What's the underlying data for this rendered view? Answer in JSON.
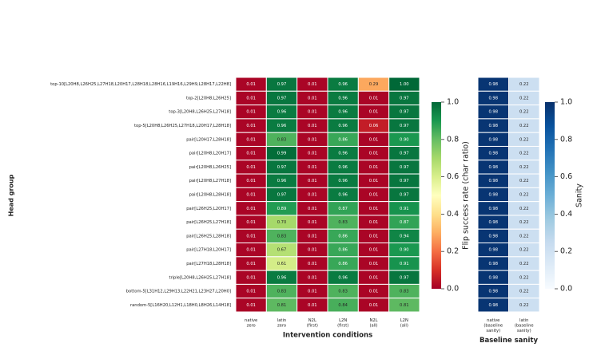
{
  "chart_data": [
    {
      "type": "heatmap",
      "ylabel": "Head group",
      "xlabel": "Intervention conditions",
      "rows": [
        "top-10[L20H8,L26H25,L27H18,L20H17,L28H18,L28H16,L19H16,L29H9,L28H17,L22H8]",
        "top-2[L20H8,L26H25]",
        "top-3[L20H8,L26H25,L27H18]",
        "top-5[L20H8,L26H25,L27H18,L20H17,L28H18]",
        "pair[L20H17,L28H18]",
        "pair[L20H8,L20H17]",
        "pair[L20H8,L26H25]",
        "pair[L20H8,L27H18]",
        "pair[L20H8,L28H18]",
        "pair[L26H25,L20H17]",
        "pair[L26H25,L27H18]",
        "pair[L26H25,L28H18]",
        "pair[L27H18,L20H17]",
        "pair[L27H18,L28H18]",
        "triple[L20H8,L26H25,L27H18]",
        "bottom-5[L31H12,L29H13,L22H21,L23H27,L20H0]",
        "random-5[L16H20,L12H1,L18H0,L8H26,L14H18]"
      ],
      "columns": [
        "native\nzero",
        "latin\nzero",
        "N2L\n(first)",
        "L2N\n(first)",
        "N2L\n(all)",
        "L2N\n(all)"
      ],
      "values": [
        [
          0.01,
          0.97,
          0.01,
          0.96,
          0.29,
          1
        ],
        [
          0.01,
          0.97,
          0.01,
          0.96,
          0.01,
          0.97
        ],
        [
          0.01,
          0.96,
          0.01,
          0.96,
          0.01,
          0.97
        ],
        [
          0.01,
          0.96,
          0.01,
          0.96,
          0.06,
          0.97
        ],
        [
          0.01,
          0.83,
          0.01,
          0.86,
          0.01,
          0.9
        ],
        [
          0.01,
          0.99,
          0.01,
          0.96,
          0.01,
          0.97
        ],
        [
          0.01,
          0.97,
          0.01,
          0.96,
          0.01,
          0.97
        ],
        [
          0.01,
          0.96,
          0.01,
          0.96,
          0.01,
          0.97
        ],
        [
          0.01,
          0.97,
          0.01,
          0.96,
          0.01,
          0.97
        ],
        [
          0.01,
          0.89,
          0.01,
          0.87,
          0.01,
          0.91
        ],
        [
          0.01,
          0.7,
          0.01,
          0.83,
          0.01,
          0.87
        ],
        [
          0.01,
          0.83,
          0.01,
          0.86,
          0.01,
          0.94
        ],
        [
          0.01,
          0.67,
          0.01,
          0.86,
          0.01,
          0.9
        ],
        [
          0.01,
          0.61,
          0.01,
          0.86,
          0.01,
          0.91
        ],
        [
          0.01,
          0.96,
          0.01,
          0.96,
          0.01,
          0.97
        ],
        [
          0.01,
          0.83,
          0.01,
          0.83,
          0.01,
          0.83
        ],
        [
          0.01,
          0.81,
          0.01,
          0.84,
          0.01,
          0.81
        ]
      ],
      "value_labels": [
        [
          "0.01",
          "0.97",
          "0.01",
          "0.96",
          "0.29",
          "1.00"
        ],
        [
          "0.01",
          "0.97",
          "0.01",
          "0.96",
          "0.01",
          "0.97"
        ],
        [
          "0.01",
          "0.96",
          "0.01",
          "0.96",
          "0.01",
          "0.97"
        ],
        [
          "0.01",
          "0.96",
          "0.01",
          "0.96",
          "0.06",
          "0.97"
        ],
        [
          "0.01",
          "0.83",
          "0.01",
          "0.86",
          "0.01",
          "0.90"
        ],
        [
          "0.01",
          "0.99",
          "0.01",
          "0.96",
          "0.01",
          "0.97"
        ],
        [
          "0.01",
          "0.97",
          "0.01",
          "0.96",
          "0.01",
          "0.97"
        ],
        [
          "0.01",
          "0.96",
          "0.01",
          "0.96",
          "0.01",
          "0.97"
        ],
        [
          "0.01",
          "0.97",
          "0.01",
          "0.96",
          "0.01",
          "0.97"
        ],
        [
          "0.01",
          "0.89",
          "0.01",
          "0.87",
          "0.01",
          "0.91"
        ],
        [
          "0.01",
          "0.70",
          "0.01",
          "0.83",
          "0.01",
          "0.87"
        ],
        [
          "0.01",
          "0.83",
          "0.01",
          "0.86",
          "0.01",
          "0.94"
        ],
        [
          "0.01",
          "0.67",
          "0.01",
          "0.86",
          "0.01",
          "0.90"
        ],
        [
          "0.01",
          "0.61",
          "0.01",
          "0.86",
          "0.01",
          "0.91"
        ],
        [
          "0.01",
          "0.96",
          "0.01",
          "0.96",
          "0.01",
          "0.97"
        ],
        [
          "0.01",
          "0.83",
          "0.01",
          "0.83",
          "0.01",
          "0.83"
        ],
        [
          "0.01",
          "0.81",
          "0.01",
          "0.84",
          "0.01",
          "0.81"
        ]
      ],
      "colormap": "RdYlGn",
      "clim": [
        0,
        1
      ],
      "cticks": [
        {
          "value": 0,
          "label": "0.0"
        },
        0.2,
        0.4,
        0.6,
        0.8,
        {
          "value": 1,
          "label": "1.0"
        }
      ],
      "colorbar_label": "Flip success rate (char ratio)"
    },
    {
      "type": "heatmap",
      "xlabel": "Baseline sanity",
      "columns": [
        "native\n(baseline\nsanity)",
        "latin\n(baseline\nsanity)"
      ],
      "values": [
        [
          0.98,
          0.22
        ],
        [
          0.98,
          0.22
        ],
        [
          0.98,
          0.22
        ],
        [
          0.98,
          0.22
        ],
        [
          0.98,
          0.22
        ],
        [
          0.98,
          0.22
        ],
        [
          0.98,
          0.22
        ],
        [
          0.98,
          0.22
        ],
        [
          0.98,
          0.22
        ],
        [
          0.98,
          0.22
        ],
        [
          0.98,
          0.22
        ],
        [
          0.98,
          0.22
        ],
        [
          0.98,
          0.22
        ],
        [
          0.98,
          0.22
        ],
        [
          0.98,
          0.22
        ],
        [
          0.98,
          0.22
        ],
        [
          0.98,
          0.22
        ]
      ],
      "colormap": "Blues",
      "clim": [
        0,
        1
      ],
      "cticks": [
        {
          "value": 0,
          "label": "0.0"
        },
        0.2,
        0.4,
        0.6,
        0.8,
        {
          "value": 1,
          "label": "1.0"
        }
      ],
      "colorbar_label": "Sanity"
    }
  ]
}
